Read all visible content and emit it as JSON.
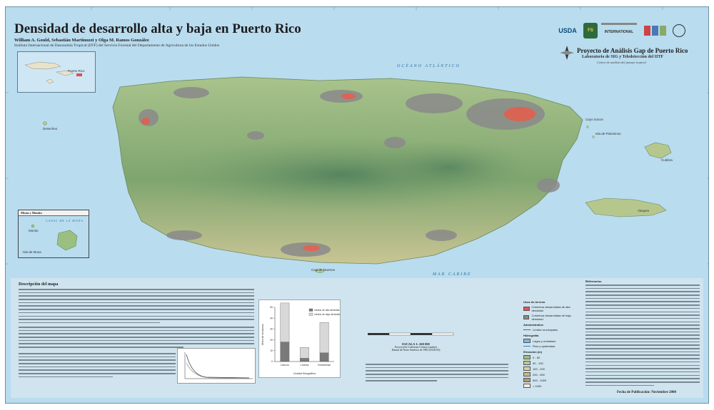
{
  "map": {
    "title": "Densidad de desarrollo alta y baja en Puerto Rico",
    "authors": "William A. Gould, Sebastián Martinuzzi y Olga M. Ramos González",
    "institution": "Instituto Internacional de Dasonomía Tropical (IITF) del Servicio Forestal del Departamento de Agricultura de los Estados Unidos"
  },
  "project": {
    "title": "Proyecto de Análisis Gap de Puerto Rico",
    "subtitle": "Laboratorio de SIG y Teledetección del IITF",
    "tagline": "Centro de análisis del paisaje tropical"
  },
  "logos": [
    "USDA",
    "FS",
    "INTERNATIONAL"
  ],
  "sea_labels": {
    "atlantic": "OCÉANO ATLÁNTICO",
    "caribbean": "MAR CARIBE",
    "mona_channel": "CANAL DE LA MONA"
  },
  "places": {
    "desecheo": "Desecheo",
    "cayo_icacos": "Cayo Icacos",
    "isla_palominos": "Isla de Palominos",
    "culebra": "Culebra",
    "vieques": "Vieques",
    "caja_de_muertos": "Caja de Muertos",
    "monito": "Monito",
    "isla_de_mona": "Isla de Mona"
  },
  "insets": {
    "mona_title": "Mona y Monito",
    "locator_label": "Puerto Rico"
  },
  "description": {
    "heading": "Descripción del mapa"
  },
  "chart_data": {
    "type": "bar",
    "categories": [
      "Llanos",
      "Lomas",
      "Montañas"
    ],
    "series": [
      {
        "name": "urbano de alta densidad",
        "values": [
          18,
          3,
          8
        ]
      },
      {
        "name": "urbano de baja densidad",
        "values": [
          36,
          10,
          28
        ]
      }
    ],
    "xlabel": "Unidad fisiográfica",
    "ylabel": "Miles de hectáreas",
    "ylim": [
      0,
      50
    ]
  },
  "scale": {
    "title": "ESCALA 1: 260 000",
    "projection": "Proyección Conforme Cónica Lambert",
    "datum": "Datum de Norte América de 1983 (NAD 83)"
  },
  "legend": {
    "urban_heading": "Usos de terreno",
    "high_density": "Cobertura desarrollada de alta densidad",
    "low_density": "Cobertura desarrollada de baja densidad",
    "admin_heading": "Administrativo",
    "admin_item": "Límites municipales",
    "hydro_heading": "Hidrografía",
    "hydro_items": [
      "Lagos y embalses",
      "Ríos y quebradas"
    ],
    "elev_heading": "Elevación (m)",
    "elev_items": [
      "0 - 50",
      "50 - 100",
      "100 - 200",
      "200 - 500",
      "500 - 1000",
      "> 1000"
    ],
    "colors": {
      "high_density": "#e4564d",
      "low_density": "#8a8a8a",
      "elev": [
        "#9fbd7e",
        "#b9c98e",
        "#d6d3a0",
        "#c7b98a",
        "#b59b72",
        "#f1eee6"
      ]
    }
  },
  "footer": {
    "date": "Fecha de Publicación: Noviembre 2008"
  },
  "references_heading": "Referencias"
}
